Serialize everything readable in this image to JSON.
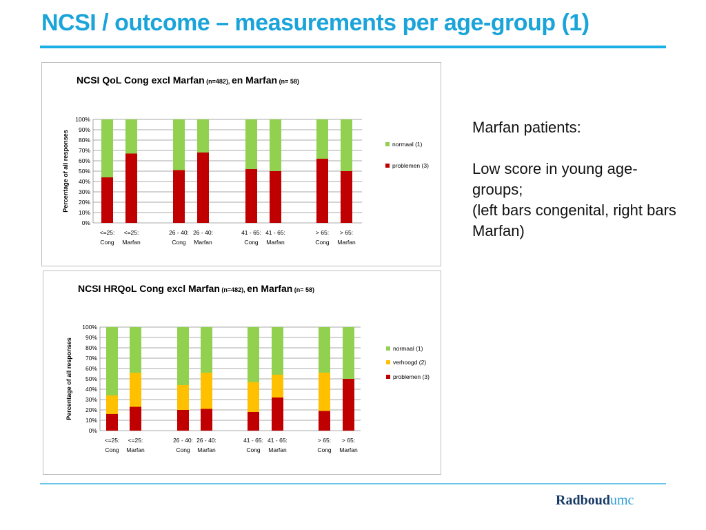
{
  "slide": {
    "title": "NCSI /  outcome  – measurements per age-group (1)",
    "note_lines": [
      "Marfan patients:",
      "",
      "Low score in young age-groups;",
      "(left bars congenital, right bars Marfan)"
    ],
    "logo_part1": "Radboud",
    "logo_part2": "umc"
  },
  "colors": {
    "accent": "#1aa4d9",
    "normaal": "#92d050",
    "verhoogd": "#ffc000",
    "problemen": "#c00000"
  },
  "chart_data": [
    {
      "type": "bar",
      "stacked": true,
      "title_main_1": "NCSI QoL Cong excl Marfan",
      "title_sub_1": "(n=482),",
      "title_main_2": "en Marfan",
      "title_sub_2": "(n= 58)",
      "ylabel": "Percentage of all responses",
      "ylim": [
        0,
        100
      ],
      "yticks": [
        "0%",
        "10%",
        "20%",
        "30%",
        "40%",
        "50%",
        "60%",
        "70%",
        "80%",
        "90%",
        "100%"
      ],
      "categories": [
        [
          "<=25:",
          "Cong"
        ],
        [
          "<=25:",
          "Marfan"
        ],
        [
          "26 - 40:",
          "Cong"
        ],
        [
          "26 - 40:",
          "Marfan"
        ],
        [
          "41 - 65:",
          "Cong"
        ],
        [
          "41 - 65:",
          "Marfan"
        ],
        [
          "> 65:",
          "Cong"
        ],
        [
          "> 65:",
          "Marfan"
        ]
      ],
      "series": [
        {
          "name": "problemen (3)",
          "color": "#c00000",
          "values": [
            44,
            67,
            51,
            68,
            52,
            50,
            62,
            50
          ]
        },
        {
          "name": "normaal (1)",
          "color": "#92d050",
          "values": [
            56,
            33,
            49,
            32,
            48,
            50,
            38,
            50
          ]
        }
      ],
      "legend": [
        "normaal (1)",
        "problemen (3)"
      ],
      "legend_position": "right"
    },
    {
      "type": "bar",
      "stacked": true,
      "title_main_1": "NCSI HRQoL  Cong excl Marfan",
      "title_sub_1": "(n=482),",
      "title_main_2": "en Marfan",
      "title_sub_2": "(n= 58)",
      "ylabel": "Percentage of all responses",
      "ylim": [
        0,
        100
      ],
      "yticks": [
        "0%",
        "10%",
        "20%",
        "30%",
        "40%",
        "50%",
        "60%",
        "70%",
        "80%",
        "90%",
        "100%"
      ],
      "categories": [
        [
          "<=25:",
          "Cong"
        ],
        [
          "<=25:",
          "Marfan"
        ],
        [
          "26 - 40:",
          "Cong"
        ],
        [
          "26 - 40:",
          "Marfan"
        ],
        [
          "41 - 65:",
          "Cong"
        ],
        [
          "41 - 65:",
          "Marfan"
        ],
        [
          "> 65:",
          "Cong"
        ],
        [
          "> 65:",
          "Marfan"
        ]
      ],
      "series": [
        {
          "name": "problemen (3)",
          "color": "#c00000",
          "values": [
            16,
            23,
            20,
            21,
            18,
            32,
            19,
            50
          ]
        },
        {
          "name": "verhoogd (2)",
          "color": "#ffc000",
          "values": [
            18,
            33,
            24,
            35,
            29,
            22,
            37,
            0
          ]
        },
        {
          "name": "normaal (1)",
          "color": "#92d050",
          "values": [
            66,
            44,
            56,
            44,
            53,
            46,
            44,
            50
          ]
        }
      ],
      "legend": [
        "normaal (1)",
        "verhoogd (2)",
        "problemen (3)"
      ],
      "legend_position": "right"
    }
  ]
}
